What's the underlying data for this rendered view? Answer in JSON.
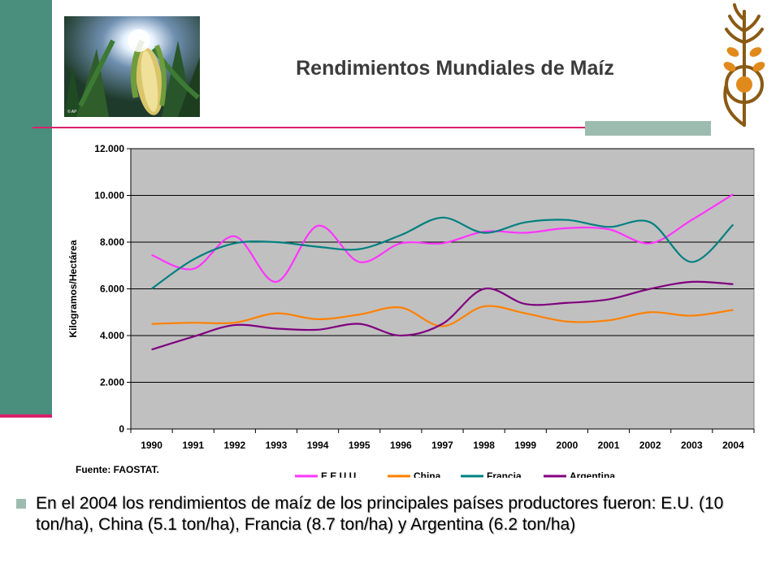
{
  "slide": {
    "title": "Rendimientos Mundiales de Maíz",
    "source": "Fuente: FAOSTAT.",
    "bullet": "En el 2004 los rendimientos de maíz de los principales países productores fueron: E.U. (10 ton/ha), China (5.1 ton/ha), Francia (8.7 ton/ha) y Argentina (6.2 ton/ha)",
    "photo_text": "© AP",
    "colors": {
      "accent": "#d9226c",
      "sidebar": "#4a8f7e",
      "plot_bg": "#c0c0c0"
    }
  },
  "chart_data": {
    "type": "line",
    "title": "",
    "xlabel": "",
    "ylabel": "Kilogramos/Hectárea",
    "x": [
      "1990",
      "1991",
      "1992",
      "1993",
      "1994",
      "1995",
      "1996",
      "1997",
      "1998",
      "1999",
      "2000",
      "2001",
      "2002",
      "2003",
      "2004"
    ],
    "ylim": [
      0,
      12000
    ],
    "yticks": [
      "0",
      "2.000",
      "4.000",
      "6.000",
      "8.000",
      "10.000",
      "12.000"
    ],
    "grid": true,
    "legend_position": "bottom",
    "series": [
      {
        "name": "E.E.U.U.",
        "color": "#ff33ff",
        "values": [
          7450,
          6850,
          8250,
          6300,
          8700,
          7150,
          7950,
          7950,
          8450,
          8400,
          8600,
          8550,
          7950,
          8950,
          10050
        ]
      },
      {
        "name": "China",
        "color": "#ff8000",
        "values": [
          4500,
          4550,
          4550,
          4950,
          4700,
          4900,
          5200,
          4400,
          5250,
          4950,
          4600,
          4650,
          5000,
          4850,
          5100
        ]
      },
      {
        "name": "Francia",
        "color": "#008080",
        "values": [
          6000,
          7250,
          7950,
          8000,
          7800,
          7700,
          8300,
          9050,
          8400,
          8850,
          8950,
          8650,
          8850,
          7150,
          8750
        ]
      },
      {
        "name": "Argentina",
        "color": "#800080",
        "values": [
          3400,
          3950,
          4450,
          4300,
          4250,
          4500,
          4000,
          4500,
          6000,
          5350,
          5400,
          5550,
          6000,
          6300,
          6200
        ]
      }
    ]
  }
}
